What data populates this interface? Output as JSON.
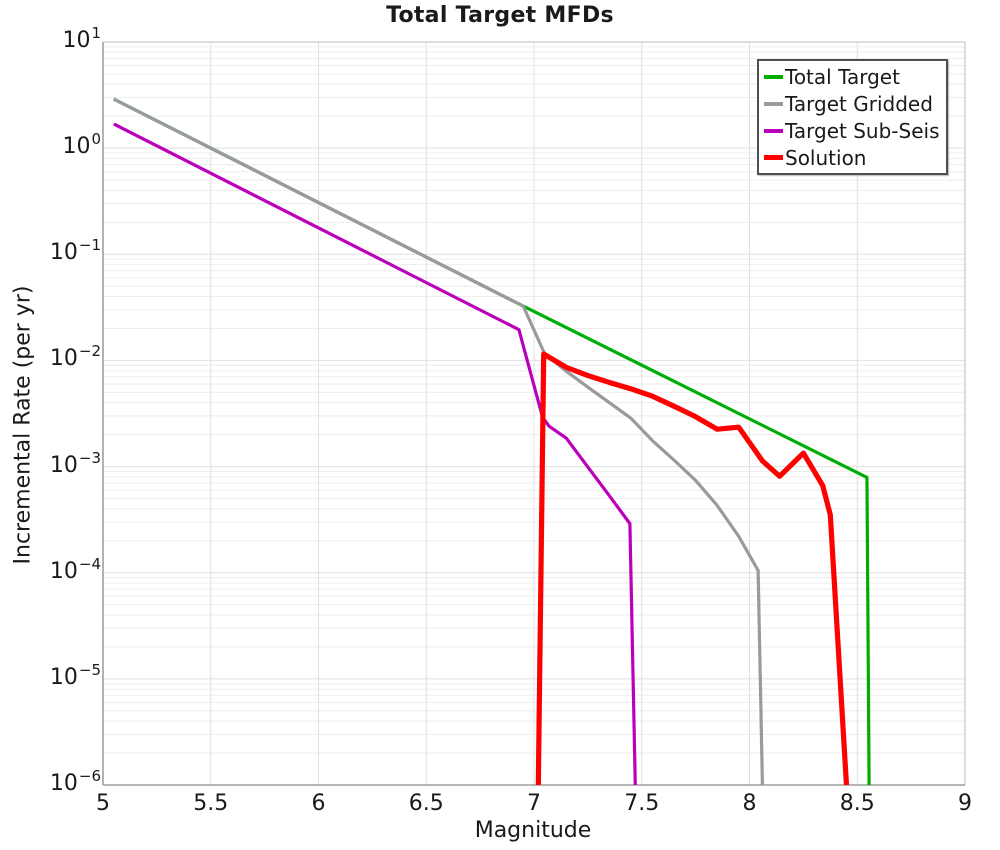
{
  "chart_data": {
    "type": "line",
    "title": "Total Target MFDs",
    "xlabel": "Magnitude",
    "ylabel": "Incremental Rate (per yr)",
    "x_axis": {
      "min": 5,
      "max": 9,
      "tick_values": [
        5,
        5.5,
        6,
        6.5,
        7,
        7.5,
        8,
        8.5,
        9
      ],
      "tick_labels": [
        "5",
        "5.5",
        "6",
        "6.5",
        "7",
        "7.5",
        "8",
        "8.5",
        "9"
      ]
    },
    "y_axis": {
      "scale": "log",
      "min": 1e-06,
      "max": 10,
      "tick_exponents": [
        1,
        0,
        -1,
        -2,
        -3,
        -4,
        -5,
        -6
      ],
      "tick_base": "10"
    },
    "grid": {
      "vertical_major": true,
      "horizontal_major": true,
      "horizontal_log_minor": true
    },
    "legend": {
      "position": "top-right",
      "entries": [
        "Total Target",
        "Target Gridded",
        "Target Sub-Seis",
        "Solution"
      ]
    },
    "colors": {
      "total_target": "#00ad00",
      "target_gridded": "#9a9a9a",
      "target_sub_seis": "#bb00bb",
      "solution": "#ff0000",
      "grid_major": "#e0e0e0",
      "grid_minor": "#ededed",
      "spine_dark": "#9e9e9e",
      "spine_light": "#c9c9c9"
    },
    "series": [
      {
        "name": "Total Target",
        "color": "#00ad00",
        "line_width": 3.2,
        "points": [
          [
            5.05,
            2.9
          ],
          [
            6.95,
            0.0325
          ],
          [
            8.545,
            0.00079
          ],
          [
            8.555,
            1e-06
          ]
        ]
      },
      {
        "name": "Target Gridded",
        "color": "#9a9a9a",
        "line_width": 3.2,
        "points": [
          [
            5.05,
            2.9
          ],
          [
            6.95,
            0.0325
          ],
          [
            7.05,
            0.0115
          ],
          [
            7.15,
            0.0079
          ],
          [
            7.25,
            0.0056
          ],
          [
            7.35,
            0.004
          ],
          [
            7.45,
            0.00285
          ],
          [
            7.55,
            0.00175
          ],
          [
            7.65,
            0.00115
          ],
          [
            7.75,
            0.00074
          ],
          [
            7.85,
            0.00043
          ],
          [
            7.95,
            0.00022
          ],
          [
            8.04,
            0.000105
          ],
          [
            8.06,
            1e-06
          ]
        ]
      },
      {
        "name": "Target Sub-Seis",
        "color": "#bb00bb",
        "line_width": 3.2,
        "points": [
          [
            5.05,
            1.69
          ],
          [
            6.93,
            0.0195
          ],
          [
            7.04,
            0.0029
          ],
          [
            7.07,
            0.0024
          ],
          [
            7.15,
            0.00185
          ],
          [
            7.25,
            0.00099
          ],
          [
            7.35,
            0.00053
          ],
          [
            7.445,
            0.00029
          ],
          [
            7.47,
            1e-06
          ]
        ]
      },
      {
        "name": "Solution",
        "color": "#ff0000",
        "line_width": 5.2,
        "points": [
          [
            7.02,
            1e-06
          ],
          [
            7.045,
            0.0115
          ],
          [
            7.15,
            0.0086
          ],
          [
            7.25,
            0.0072
          ],
          [
            7.35,
            0.0062
          ],
          [
            7.45,
            0.0054
          ],
          [
            7.55,
            0.0046
          ],
          [
            7.65,
            0.0037
          ],
          [
            7.75,
            0.00295
          ],
          [
            7.85,
            0.00225
          ],
          [
            7.95,
            0.00235
          ],
          [
            8.06,
            0.00113
          ],
          [
            8.14,
            0.00081
          ],
          [
            8.25,
            0.00134
          ],
          [
            8.34,
            0.00066
          ],
          [
            8.375,
            0.00035
          ],
          [
            8.45,
            1e-06
          ]
        ]
      }
    ]
  }
}
